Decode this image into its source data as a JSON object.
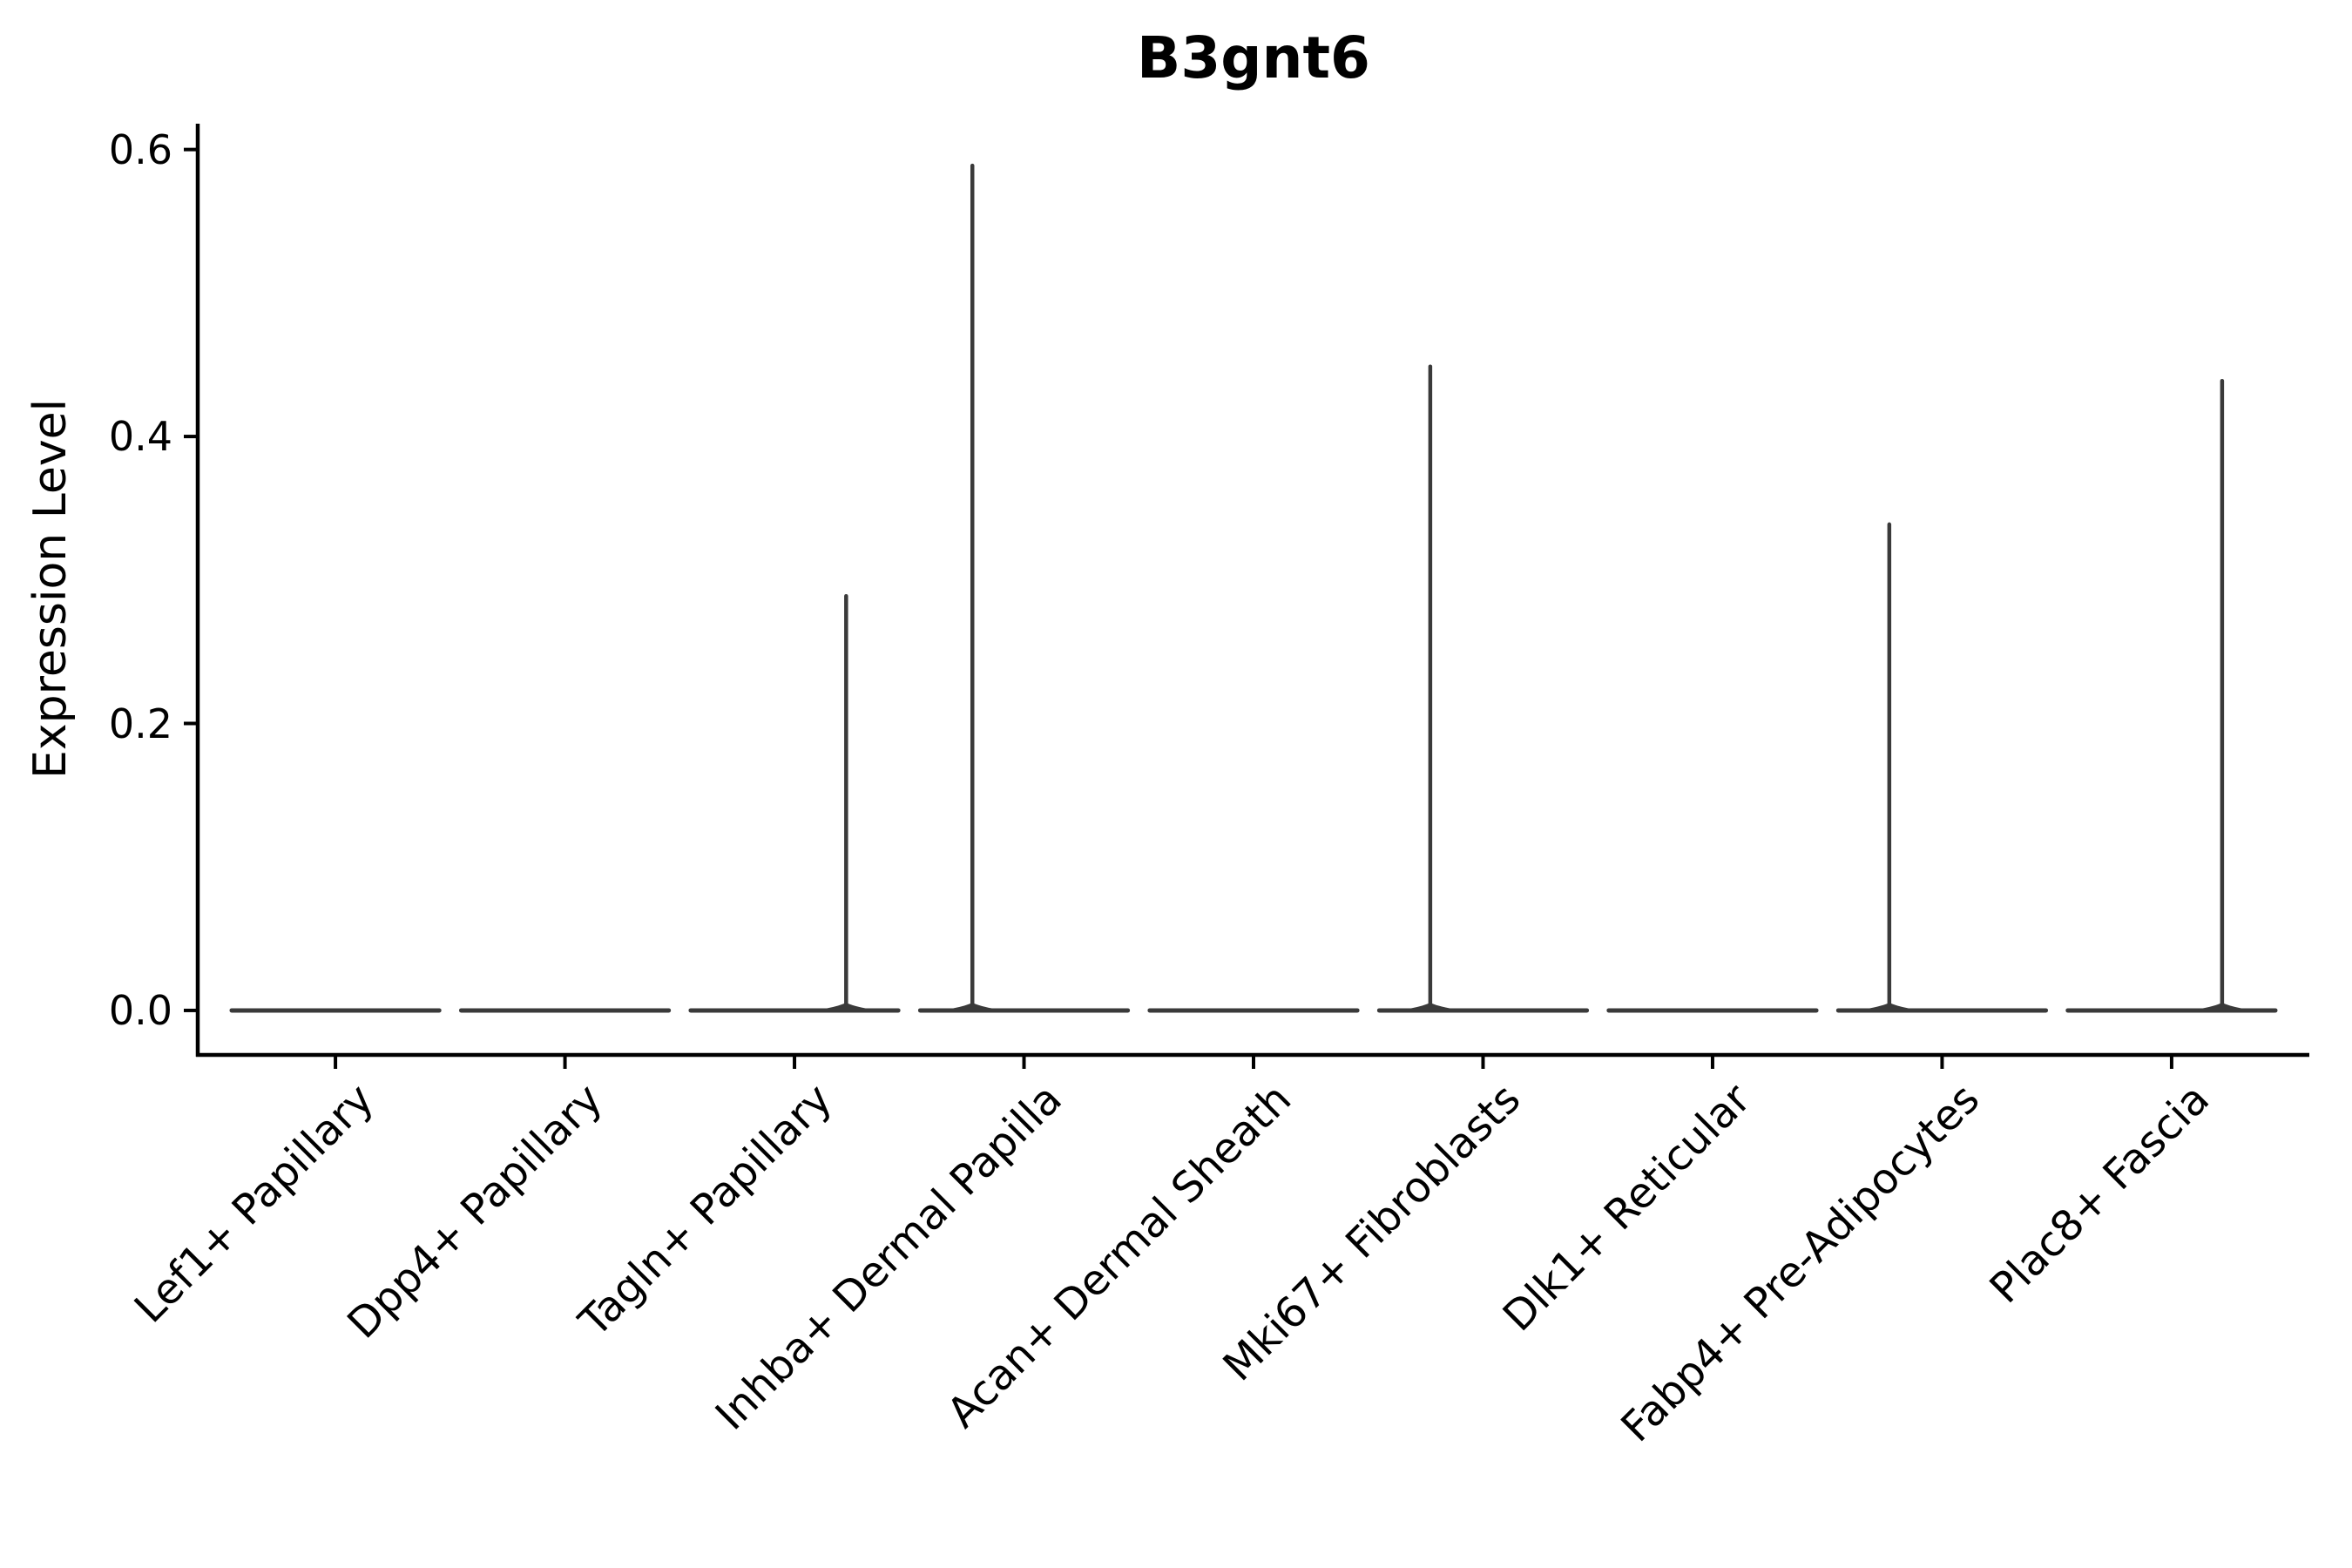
{
  "title": "B3gnt6",
  "chart_data": {
    "type": "violin",
    "title": "B3gnt6",
    "xlabel": "",
    "ylabel": "Expression Level",
    "legend": "none",
    "grid": false,
    "ylim": [
      -0.031,
      0.618
    ],
    "ytick_values": [
      0.0,
      0.2,
      0.4,
      0.6
    ],
    "ytick_labels": [
      "0.0",
      "0.2",
      "0.4",
      "0.6"
    ],
    "categories": [
      "Lef1+ Papillary",
      "Dpp4+ Papillary",
      "Tagln+ Papillary",
      "Inhba+ Dermal Papilla",
      "Acan+ Dermal Sheath",
      "Mki67+ Fibroblasts",
      "Dlk1+ Reticular",
      "Fabp4+ Pre-Adipocytes",
      "Plac8+ Fascia"
    ],
    "series": [
      {
        "name": "Lef1+ Papillary",
        "body_value": 0.0,
        "max_value": 0.0,
        "spike_offset_frac": 0.0
      },
      {
        "name": "Dpp4+ Papillary",
        "body_value": 0.0,
        "max_value": 0.0,
        "spike_offset_frac": 0.0
      },
      {
        "name": "Tagln+ Papillary",
        "body_value": 0.0,
        "max_value": 0.29,
        "spike_offset_frac": 0.225
      },
      {
        "name": "Inhba+ Dermal Papilla",
        "body_value": 0.0,
        "max_value": 0.59,
        "spike_offset_frac": -0.225
      },
      {
        "name": "Acan+ Dermal Sheath",
        "body_value": 0.0,
        "max_value": 0.0,
        "spike_offset_frac": 0.0
      },
      {
        "name": "Mki67+ Fibroblasts",
        "body_value": 0.0,
        "max_value": 0.45,
        "spike_offset_frac": -0.23
      },
      {
        "name": "Dlk1+ Reticular",
        "body_value": 0.0,
        "max_value": 0.0,
        "spike_offset_frac": 0.0
      },
      {
        "name": "Fabp4+ Pre-Adipocytes",
        "body_value": 0.0,
        "max_value": 0.34,
        "spike_offset_frac": -0.23
      },
      {
        "name": "Plac8+ Fascia",
        "body_value": 0.0,
        "max_value": 0.44,
        "spike_offset_frac": 0.22
      }
    ],
    "colors": {
      "violin": "#3a3a3a",
      "axis": "#000000",
      "background": "#ffffff"
    }
  }
}
